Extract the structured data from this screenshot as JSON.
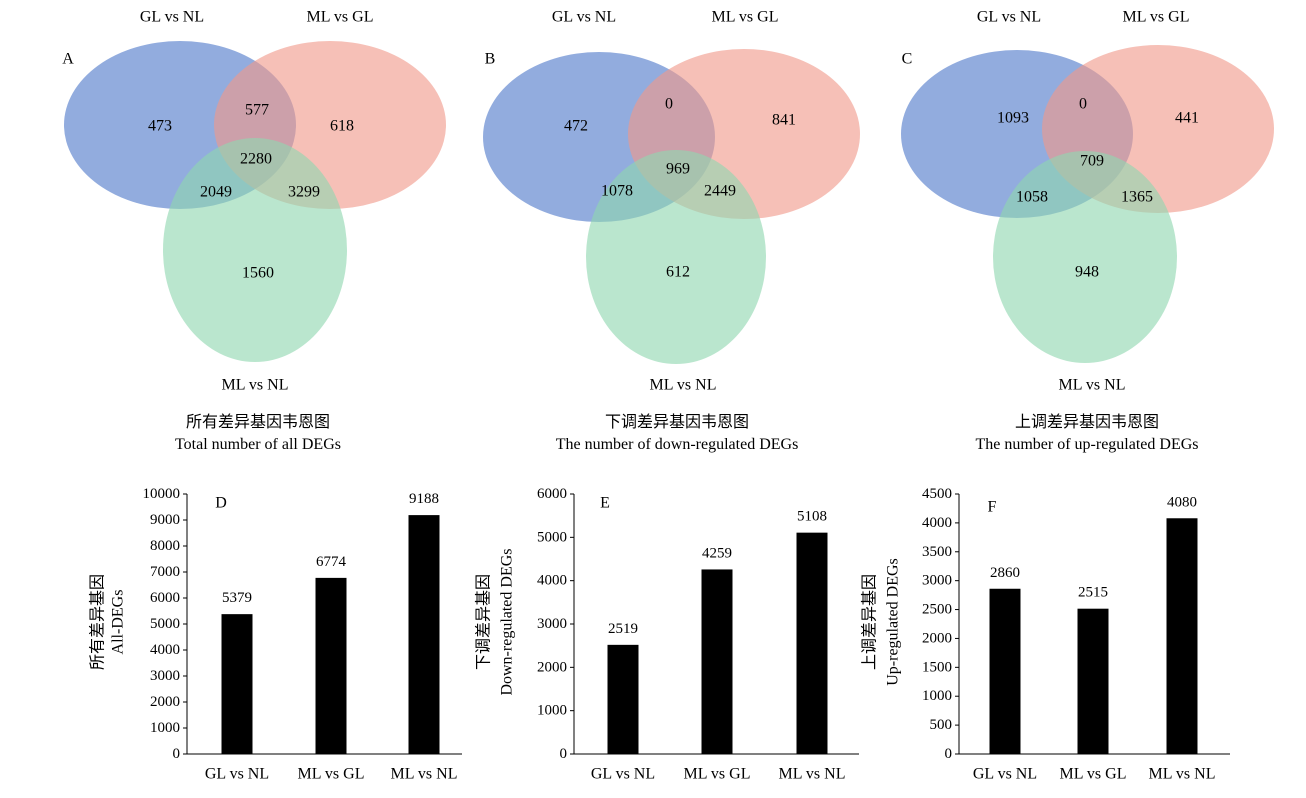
{
  "colors": {
    "blue": "#4f79c9",
    "salmon": "#f19a8a",
    "green": "#8fd6b0",
    "bar": "#000000"
  },
  "chart_data": [
    {
      "type": "venn",
      "panel": "A",
      "sets": [
        "GL vs NL",
        "ML vs GL",
        "ML vs NL"
      ],
      "regions": {
        "only_GLvsNL": 473,
        "GLvsNL_MLvsGL": 577,
        "only_MLvsGL": 618,
        "all_three": 2280,
        "GLvsNL_MLvsNL": 2049,
        "MLvsGL_MLvsNL": 3299,
        "only_MLvsNL": 1560
      },
      "title": "所有差异基因韦恩图",
      "subtitle": "Total number of all DEGs"
    },
    {
      "type": "venn",
      "panel": "B",
      "sets": [
        "GL vs NL",
        "ML vs GL",
        "ML vs NL"
      ],
      "regions": {
        "only_GLvsNL": 472,
        "GLvsNL_MLvsGL": 0,
        "only_MLvsGL": 841,
        "all_three": 969,
        "GLvsNL_MLvsNL": 1078,
        "MLvsGL_MLvsNL": 2449,
        "only_MLvsNL": 612
      },
      "title": "下调差异基因韦恩图",
      "subtitle": "The number of down-regulated DEGs"
    },
    {
      "type": "venn",
      "panel": "C",
      "sets": [
        "GL vs NL",
        "ML vs GL",
        "ML vs NL"
      ],
      "regions": {
        "only_GLvsNL": 1093,
        "GLvsNL_MLvsGL": 0,
        "only_MLvsGL": 441,
        "all_three": 709,
        "GLvsNL_MLvsNL": 1058,
        "MLvsGL_MLvsNL": 1365,
        "only_MLvsNL": 948
      },
      "title": "上调差异基因韦恩图",
      "subtitle": "The number of up-regulated DEGs"
    },
    {
      "type": "bar",
      "panel": "D",
      "categories": [
        "GL vs NL",
        "ML vs GL",
        "ML vs NL"
      ],
      "values": [
        5379,
        6774,
        9188
      ],
      "ylabel_cn": "所有差异基因",
      "ylabel": "All-DEGs",
      "ylim": [
        0,
        10000
      ],
      "yticks": [
        0,
        1000,
        2000,
        3000,
        4000,
        5000,
        6000,
        7000,
        8000,
        9000,
        10000
      ]
    },
    {
      "type": "bar",
      "panel": "E",
      "categories": [
        "GL vs NL",
        "ML vs GL",
        "ML vs NL"
      ],
      "values": [
        2519,
        4259,
        5108
      ],
      "ylabel_cn": "下调差异基因",
      "ylabel": "Down-regulated DEGs",
      "ylim": [
        0,
        6000
      ],
      "yticks": [
        0,
        1000,
        2000,
        3000,
        4000,
        5000,
        6000
      ]
    },
    {
      "type": "bar",
      "panel": "F",
      "categories": [
        "GL vs NL",
        "ML vs GL",
        "ML vs NL"
      ],
      "values": [
        2860,
        2515,
        4080
      ],
      "ylabel_cn": "上调差异基因",
      "ylabel": "Up-regulated DEGs",
      "ylim": [
        0,
        4500
      ],
      "yticks": [
        0,
        500,
        1000,
        1500,
        2000,
        2500,
        3000,
        3500,
        4000,
        4500
      ]
    }
  ]
}
